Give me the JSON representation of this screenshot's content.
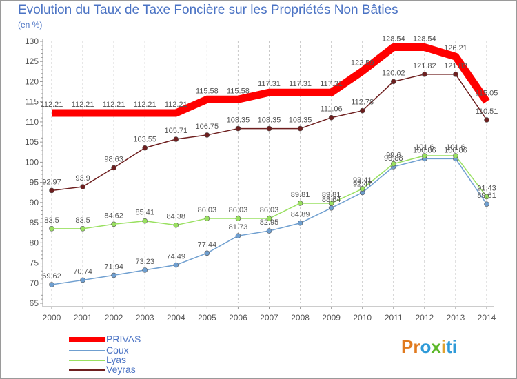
{
  "header": {
    "title": "Evolution du Taux de Taxe Foncière sur les Propriétés Non Bâties",
    "unit": "(en %)"
  },
  "logo": {
    "parts": [
      "Pr",
      "o",
      "x",
      "i",
      "ti"
    ],
    "colors": [
      "#e07a1f",
      "#2e9ad8",
      "#5cb82a",
      "#e0a02e",
      "#2e9ad8"
    ]
  },
  "chart_data": {
    "type": "line",
    "x": [
      "2000",
      "2001",
      "2002",
      "2003",
      "2004",
      "2005",
      "2006",
      "2007",
      "2008",
      "2009",
      "2010",
      "2011",
      "2012",
      "2013",
      "2014"
    ],
    "ylim": [
      65,
      130
    ],
    "yticks": [
      65,
      70,
      75,
      80,
      85,
      90,
      95,
      100,
      105,
      110,
      115,
      120,
      125,
      130
    ],
    "grid": "vertical-dashed",
    "legend_position": "bottom-left",
    "series": [
      {
        "name": "PRIVAS",
        "color": "#ff0000",
        "values": [
          112.21,
          112.21,
          112.21,
          112.21,
          112.21,
          115.58,
          115.58,
          117.31,
          117.31,
          117.31,
          122.59,
          128.54,
          128.54,
          126.21,
          115.05
        ],
        "labels": [
          "112.21",
          "112.21",
          "112.21",
          "112.21",
          "112.21",
          "115.58",
          "115.58",
          "117.31",
          "117.31",
          "117.31",
          "122.59",
          "128.54",
          "128.54",
          "126.21",
          "115.05"
        ]
      },
      {
        "name": "Coux",
        "color": "#6f9fd0",
        "values": [
          69.62,
          70.74,
          71.94,
          73.23,
          74.49,
          77.44,
          81.73,
          82.95,
          84.89,
          88.64,
          92.47,
          98.88,
          100.86,
          100.86,
          89.61
        ],
        "labels": [
          "69.62",
          "70.74",
          "71.94",
          "73.23",
          "74.49",
          "77.44",
          "81.73",
          "82.95",
          "84.89",
          "88.64",
          "92.47",
          "98.88",
          "100.86",
          "100.86",
          "89.61"
        ]
      },
      {
        "name": "Lyas",
        "color": "#99e060",
        "values": [
          83.5,
          83.5,
          84.62,
          85.41,
          84.38,
          86.03,
          86.03,
          86.03,
          89.81,
          89.81,
          93.41,
          99.6,
          101.6,
          101.6,
          91.43
        ],
        "labels": [
          "83.5",
          "83.5",
          "84.62",
          "85.41",
          "84.38",
          "86.03",
          "86.03",
          "86.03",
          "89.81",
          "89.81",
          "93.41",
          "99.6",
          "101.6",
          "101.6",
          "91.43"
        ]
      },
      {
        "name": "Veyras",
        "color": "#6e1f1f",
        "values": [
          92.97,
          93.9,
          98.63,
          103.55,
          105.71,
          106.75,
          108.35,
          108.35,
          108.35,
          111.06,
          112.78,
          120.02,
          121.82,
          121.82,
          110.51
        ],
        "labels": [
          "92.97",
          "93.9",
          "98.63",
          "103.55",
          "105.71",
          "106.75",
          "108.35",
          "108.35",
          "108.35",
          "111.06",
          "112.78",
          "120.02",
          "121.82",
          "121.82",
          "110.51"
        ]
      }
    ]
  }
}
